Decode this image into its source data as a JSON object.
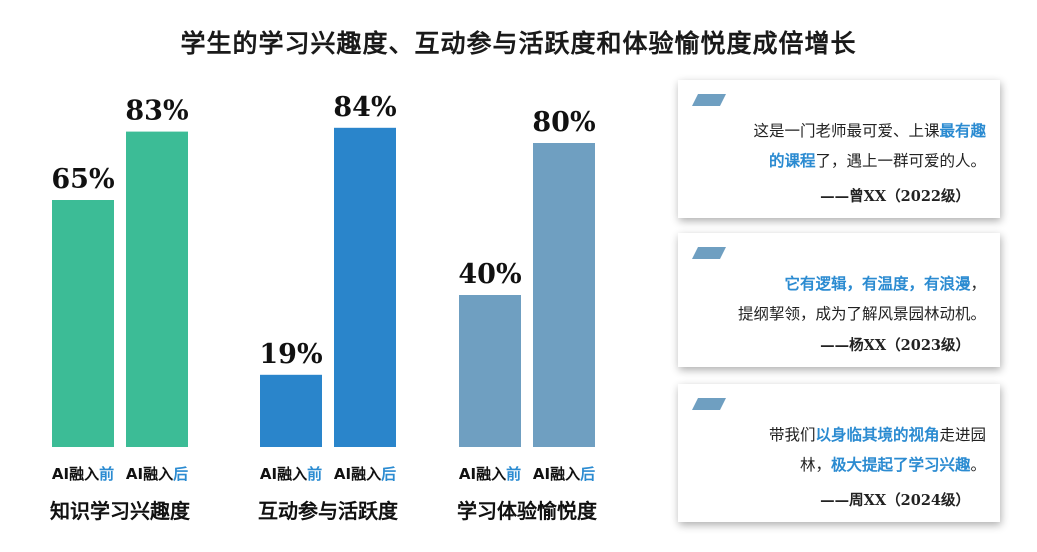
{
  "title": "学生的学习兴趣度、互动参与活跃度和体验愉悦度成倍增长",
  "chart_data": {
    "type": "bar",
    "ylim": [
      0,
      100
    ],
    "label_before_prefix": "AI融入",
    "label_before_suffix": "前",
    "label_after_prefix": "AI融入",
    "label_after_suffix": "后",
    "groups": [
      {
        "name": "知识学习兴趣度",
        "before": 65,
        "after": 83,
        "before_label": "65%",
        "after_label": "83%",
        "color_before": "#3cbc96",
        "color_after": "#3cbc96"
      },
      {
        "name": "互动参与活跃度",
        "before": 19,
        "after": 84,
        "before_label": "19%",
        "after_label": "84%",
        "color_before": "#2a85cb",
        "color_after": "#2a85cb"
      },
      {
        "name": "学习体验愉悦度",
        "before": 40,
        "after": 80,
        "before_label": "40%",
        "after_label": "80%",
        "color_before": "#6f9fc1",
        "color_after": "#6f9fc1"
      }
    ],
    "accent_label_color": "#2b8bd1"
  },
  "testimonials": [
    {
      "lines": [
        [
          {
            "t": "这是一门老师最可爱、上课",
            "em": false
          },
          {
            "t": "最有趣",
            "em": true
          }
        ],
        [
          {
            "t": "的课程",
            "em": true
          },
          {
            "t": "了，遇上一群可爱的人。",
            "em": false
          }
        ]
      ],
      "author": "——曾XX（2022级）"
    },
    {
      "lines": [
        [
          {
            "t": "它有逻辑，有温度，有浪漫",
            "em": true
          },
          {
            "t": "，",
            "em": false
          }
        ],
        [
          {
            "t": "提纲挈领，成为了解风景园林动机。",
            "em": false
          }
        ]
      ],
      "author": "——杨XX（2023级）"
    },
    {
      "lines": [
        [
          {
            "t": "带我们",
            "em": false
          },
          {
            "t": "以身临其境的视角",
            "em": true
          },
          {
            "t": "走进园",
            "em": false
          }
        ],
        [
          {
            "t": "林，",
            "em": false
          },
          {
            "t": "极大提起了学习兴趣",
            "em": true
          },
          {
            "t": "。",
            "em": false
          }
        ]
      ],
      "author": "——周XX（2024级）"
    }
  ],
  "colors": {
    "flag": "#6f9fc1"
  }
}
